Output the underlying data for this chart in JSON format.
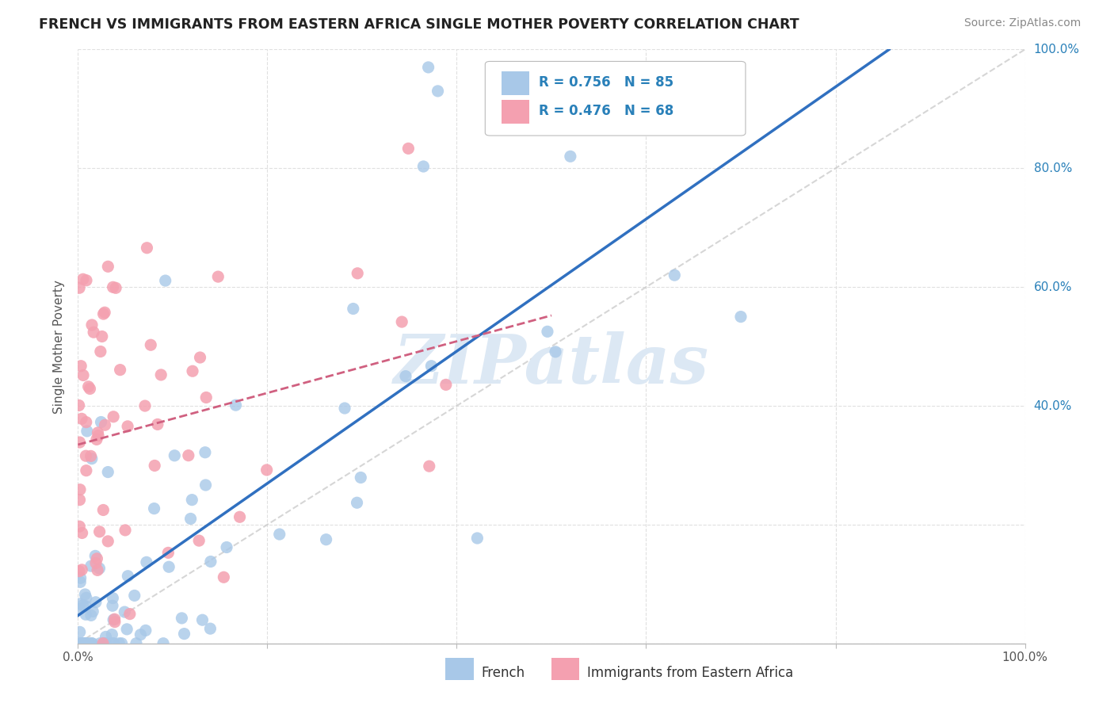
{
  "title": "FRENCH VS IMMIGRANTS FROM EASTERN AFRICA SINGLE MOTHER POVERTY CORRELATION CHART",
  "source": "Source: ZipAtlas.com",
  "ylabel": "Single Mother Poverty",
  "R_french": 0.756,
  "N_french": 85,
  "R_immigrants": 0.476,
  "N_immigrants": 68,
  "french_color": "#a8c8e8",
  "immigrants_color": "#f4a0b0",
  "french_line_color": "#3070c0",
  "immigrants_line_color": "#d06080",
  "diagonal_color": "#cccccc",
  "background_color": "#ffffff",
  "grid_color": "#e0e0e0",
  "title_color": "#1a5276",
  "label_color": "#555555",
  "right_label_color": "#2980b9",
  "watermark_color": "#dce8f4",
  "xlim": [
    0.0,
    1.0
  ],
  "ylim": [
    0.0,
    1.0
  ],
  "xticks": [
    0.0,
    0.2,
    0.4,
    0.6,
    0.8,
    1.0
  ],
  "yticks": [
    0.0,
    0.2,
    0.4,
    0.6,
    0.8,
    1.0
  ],
  "xticklabels_bottom": [
    "0.0%",
    "",
    "",
    "",
    "",
    "100.0%"
  ],
  "right_labels": [
    [
      1.0,
      "100.0%"
    ],
    [
      0.8,
      "80.0%"
    ],
    [
      0.6,
      "60.0%"
    ],
    [
      0.4,
      "40.0%"
    ]
  ]
}
